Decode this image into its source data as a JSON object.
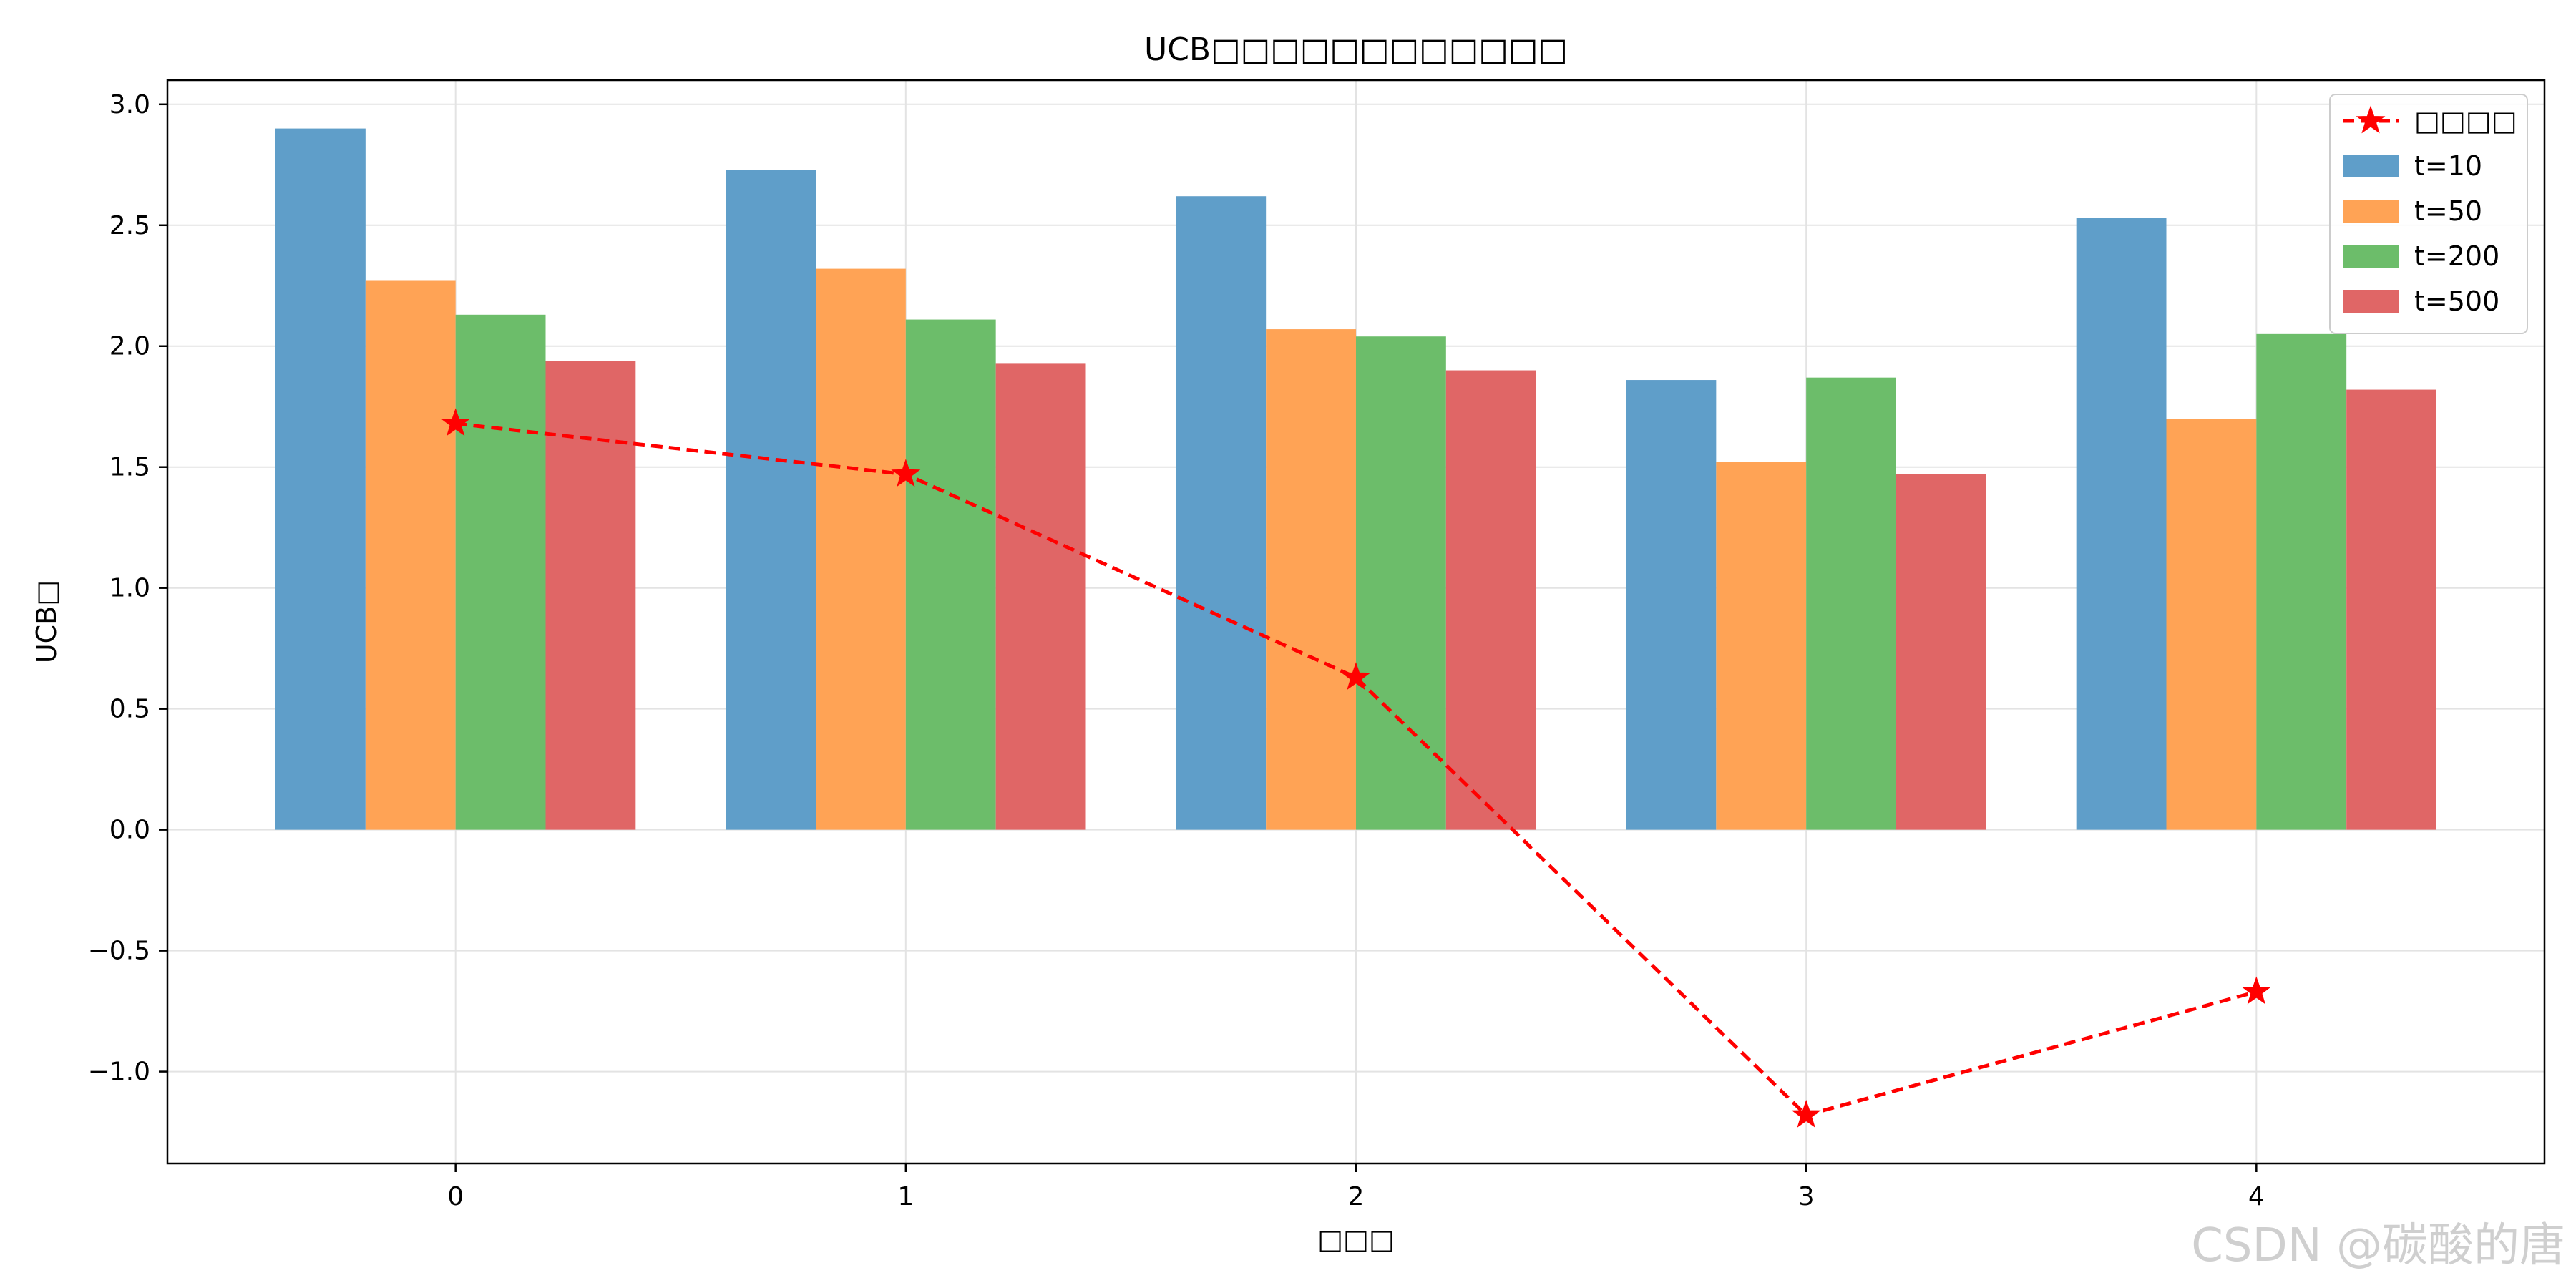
{
  "chart_data": {
    "type": "bar",
    "title": "UCB□□□□□□□□□□□□",
    "xlabel": "□□□",
    "ylabel": "UCB□",
    "categories": [
      "0",
      "1",
      "2",
      "3",
      "4"
    ],
    "series": [
      {
        "name": "t=10",
        "values": [
          2.9,
          2.73,
          2.62,
          1.86,
          2.53
        ]
      },
      {
        "name": "t=50",
        "values": [
          2.27,
          2.32,
          2.07,
          1.52,
          1.7
        ]
      },
      {
        "name": "t=200",
        "values": [
          2.13,
          2.11,
          2.04,
          1.87,
          2.05
        ]
      },
      {
        "name": "t=500",
        "values": [
          1.94,
          1.93,
          1.9,
          1.47,
          1.82
        ]
      }
    ],
    "line_series": {
      "name": "□□□□",
      "values": [
        1.68,
        1.47,
        0.63,
        -1.18,
        -0.67
      ],
      "color": "#ff0000",
      "style": "dashed",
      "marker": "star"
    },
    "ylim": [
      -1.38,
      3.1
    ],
    "yticks": [
      3.0,
      2.5,
      2.0,
      1.5,
      1.0,
      0.5,
      0.0,
      -0.5,
      -1.0
    ],
    "ytick_labels": [
      "3.0",
      "2.5",
      "2.0",
      "1.5",
      "1.0",
      "0.5",
      "0.0",
      "−0.5",
      "−1.0"
    ],
    "grid": true,
    "legend_position": "top-right",
    "colors": {
      "t=10": "#5f9ec9",
      "t=50": "#ffa355",
      "t=200": "#6cbd6a",
      "t=500": "#e06666",
      "line": "#ff0000"
    }
  },
  "watermark": "CSDN @碳酸的唐"
}
